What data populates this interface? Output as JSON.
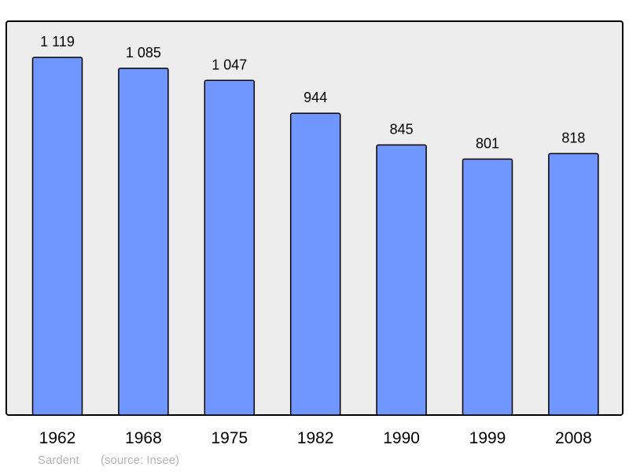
{
  "chart_data": {
    "type": "bar",
    "categories": [
      "1962",
      "1968",
      "1975",
      "1982",
      "1990",
      "1999",
      "2008"
    ],
    "values": [
      1119,
      1085,
      1047,
      944,
      845,
      801,
      818
    ],
    "value_labels": [
      "1 119",
      "1 085",
      "1 047",
      "944",
      "845",
      "801",
      "818"
    ],
    "title": "",
    "xlabel": "",
    "ylabel": "",
    "grid": false,
    "colors": {
      "bar": "#7096ff",
      "plot_background": "#ededed",
      "caption": "#b4b4b4"
    }
  },
  "caption": {
    "place": "Sardent",
    "source": "(source: Insee)"
  }
}
